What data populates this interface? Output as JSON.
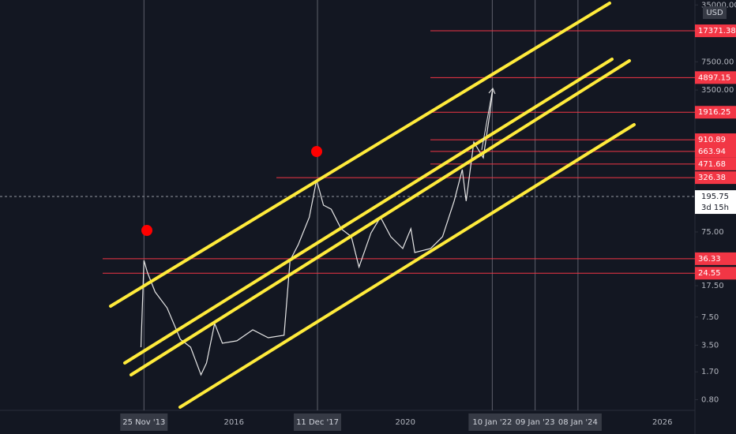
{
  "chart_data": {
    "type": "line",
    "log_scale": true,
    "currency": "USD",
    "xlim": [
      2010.54,
      2026.76
    ],
    "ylim": [
      0.6,
      40000
    ],
    "xticks": [
      {
        "value": 2013.9,
        "label": "25 Nov '13"
      },
      2016,
      {
        "value": 2017.95,
        "label": "11 Dec '17"
      },
      2020,
      {
        "value": 2022.03,
        "label": "10 Jan '22"
      },
      {
        "value": 2023.03,
        "label": "09 Jan '23"
      },
      {
        "value": 2024.03,
        "label": "08 Jan '24"
      },
      2026
    ],
    "yticks": [
      {
        "value": 35000,
        "label": "35000.00"
      },
      {
        "value": 7500,
        "label": "7500.00"
      },
      {
        "value": 3500,
        "label": "3500.00"
      },
      {
        "value": 75,
        "label": "75.00"
      },
      {
        "value": 17.5,
        "label": "17.50"
      },
      {
        "value": 7.5,
        "label": "7.50"
      },
      {
        "value": 3.5,
        "label": "3.50"
      },
      {
        "value": 1.7,
        "label": "1.70"
      },
      {
        "value": 0.8,
        "label": "0.80"
      }
    ],
    "levels": [
      17371.38,
      4897.15,
      1916.25,
      910.89,
      663.94,
      471.68,
      326.38,
      36.33,
      24.55
    ],
    "level_color": "#f23645",
    "crosshair": 195.75,
    "countdown": "3d 15h",
    "series": [
      {
        "color": "#e6e6e6",
        "x": [
          2013.83,
          2013.9,
          2013.98,
          2014.16,
          2014.44,
          2014.75,
          2014.99,
          2015.23,
          2015.36,
          2015.55,
          2015.73,
          2016.07,
          2016.44,
          2016.8,
          2017.17,
          2017.31,
          2017.5,
          2017.76,
          2017.93,
          2018.09,
          2018.27,
          2018.5,
          2018.74,
          2018.92,
          2019.2,
          2019.42,
          2019.66,
          2019.94,
          2020.13,
          2020.22,
          2020.59,
          2020.87,
          2021.14,
          2021.33,
          2021.42,
          2021.6,
          2021.82,
          2021.97,
          2022.04
        ],
        "values": [
          3.31,
          34.7,
          25.2,
          14.8,
          9.6,
          4.1,
          3.31,
          1.57,
          2.16,
          6.3,
          3.69,
          3.94,
          5.3,
          4.28,
          4.57,
          34.7,
          53,
          112,
          307,
          155,
          139,
          82,
          66,
          29,
          73,
          112,
          66,
          48,
          82,
          43,
          48,
          66,
          173,
          406,
          173,
          856,
          558,
          1807,
          3430
        ]
      }
    ]
  }
}
